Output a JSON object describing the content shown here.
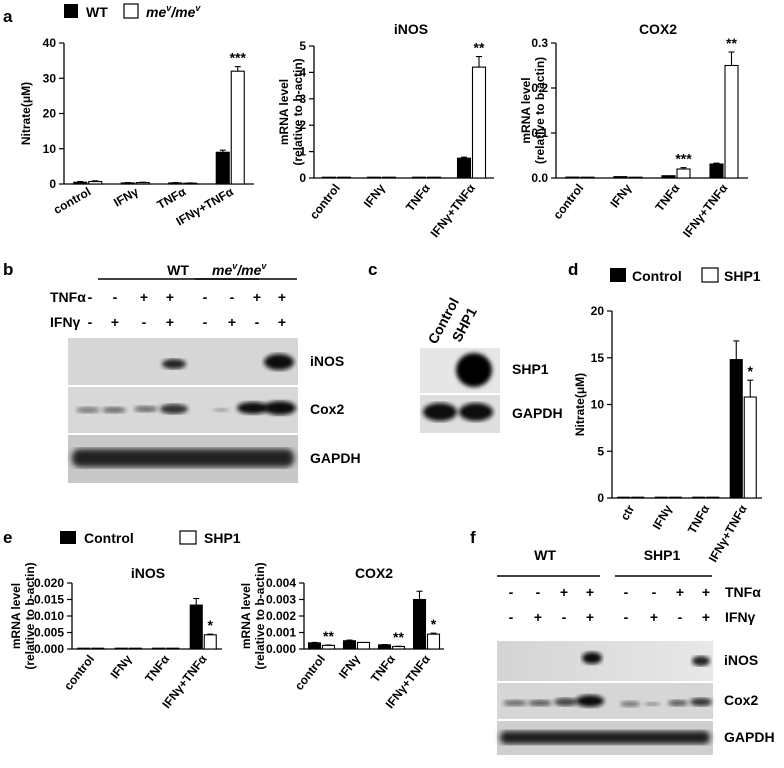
{
  "panel_letters": {
    "a": "a",
    "b": "b",
    "c": "c",
    "d": "d",
    "e": "e",
    "f": "f"
  },
  "legend_a": {
    "wt": "WT",
    "mut": "me",
    "mut_sup": "v",
    "slash": "/",
    "mut2": "me",
    "mut2_sup": "v"
  },
  "legend_d": {
    "control": "Control",
    "shp1": "SHP1"
  },
  "legend_e": {
    "control": "Control",
    "shp1": "SHP1"
  },
  "colors": {
    "filled": "#000000",
    "open": "#ffffff",
    "axis": "#000000"
  },
  "chart_data": [
    {
      "id": "a1",
      "type": "bar",
      "title": "",
      "ylabel": "Nitrate(μM)",
      "ylim": [
        0,
        40
      ],
      "yticks": [
        "0",
        "10",
        "20",
        "30",
        "40"
      ],
      "categories": [
        "control",
        "IFNγ",
        "TNFα",
        "IFNγ+TNFα"
      ],
      "series": [
        {
          "name": "WT",
          "values": [
            0.5,
            0.3,
            0.3,
            9.0
          ],
          "errors": [
            0.2,
            0.1,
            0.1,
            0.6
          ]
        },
        {
          "name": "me/me",
          "values": [
            0.7,
            0.4,
            0.2,
            32.0
          ],
          "errors": [
            0.2,
            0.1,
            0.1,
            1.3
          ]
        }
      ],
      "annotations": [
        {
          "cat": 3,
          "series": 1,
          "text": "***"
        }
      ]
    },
    {
      "id": "a2",
      "type": "bar",
      "title": "iNOS",
      "ylabel": [
        "mRNA level",
        "(relative to b-actin)"
      ],
      "ylim": [
        0,
        5
      ],
      "yticks": [
        "0",
        "1",
        "2",
        "3",
        "4",
        "5"
      ],
      "categories": [
        "control",
        "IFNγ",
        "TNFα",
        "IFNγ+TNFα"
      ],
      "series": [
        {
          "name": "WT",
          "values": [
            0.005,
            0.01,
            0.01,
            0.75
          ],
          "errors": [
            0,
            0,
            0,
            0.04
          ]
        },
        {
          "name": "me/me",
          "values": [
            0.005,
            0.02,
            0.03,
            4.2
          ],
          "errors": [
            0,
            0,
            0,
            0.4
          ]
        }
      ],
      "annotations": [
        {
          "cat": 3,
          "series": 1,
          "text": "**"
        }
      ]
    },
    {
      "id": "a3",
      "type": "bar",
      "title": "COX2",
      "ylabel": [
        "mRNA level",
        "(relative to b-actin)"
      ],
      "ylim": [
        0,
        0.3
      ],
      "yticks": [
        "0.0",
        "0.1",
        "0.2",
        "0.3"
      ],
      "categories": [
        "control",
        "IFNγ",
        "TNFα",
        "IFNγ+TNFα"
      ],
      "series": [
        {
          "name": "WT",
          "values": [
            0.002,
            0.003,
            0.005,
            0.031
          ],
          "errors": [
            0,
            0,
            0,
            0.002
          ]
        },
        {
          "name": "me/me",
          "values": [
            0.001,
            0.001,
            0.02,
            0.25
          ],
          "errors": [
            0,
            0,
            0.003,
            0.03
          ]
        }
      ],
      "annotations": [
        {
          "cat": 2,
          "series": 1,
          "text": "***"
        },
        {
          "cat": 3,
          "series": 1,
          "text": "**"
        }
      ]
    },
    {
      "id": "d",
      "type": "bar",
      "title": "",
      "ylabel": "Nitrate(μM)",
      "ylim": [
        0,
        20
      ],
      "yticks": [
        "0",
        "5",
        "10",
        "15",
        "20"
      ],
      "categories": [
        "ctr",
        "IFNγ",
        "TNFα",
        "IFNγ+TNFα"
      ],
      "series": [
        {
          "name": "Control",
          "values": [
            0,
            0,
            0,
            14.8
          ],
          "errors": [
            0,
            0,
            0,
            2.0
          ]
        },
        {
          "name": "SHP1",
          "values": [
            0,
            0,
            0,
            10.8
          ],
          "errors": [
            0,
            0,
            0,
            1.8
          ]
        }
      ],
      "annotations": [
        {
          "cat": 3,
          "series": 1,
          "text": "*"
        }
      ]
    },
    {
      "id": "e1",
      "type": "bar",
      "title": "iNOS",
      "ylabel": [
        "mRNA level",
        "(relative to b-actin)"
      ],
      "ylim": [
        0,
        0.02
      ],
      "yticks": [
        "0.000",
        "0.005",
        "0.010",
        "0.015",
        "0.020"
      ],
      "categories": [
        "control",
        "IFNγ",
        "TNFα",
        "IFNγ+TNFα"
      ],
      "series": [
        {
          "name": "Control",
          "values": [
            0,
            0,
            0.0001,
            0.0133
          ],
          "errors": [
            0,
            0,
            0,
            0.002
          ]
        },
        {
          "name": "SHP1",
          "values": [
            0,
            0,
            0.0001,
            0.0043
          ],
          "errors": [
            0,
            0,
            0,
            0.0002
          ]
        }
      ],
      "annotations": [
        {
          "cat": 3,
          "series": 1,
          "text": "*"
        }
      ]
    },
    {
      "id": "e2",
      "type": "bar",
      "title": "COX2",
      "ylabel": [
        "mRNA level",
        "(relative to b-actin)"
      ],
      "ylim": [
        0,
        0.004
      ],
      "yticks": [
        "0.000",
        "0.001",
        "0.002",
        "0.003",
        "0.004"
      ],
      "categories": [
        "control",
        "IFNγ",
        "TNFα",
        "IFNγ+TNFα"
      ],
      "series": [
        {
          "name": "Control",
          "values": [
            0.00037,
            0.0005,
            0.00025,
            0.003
          ],
          "errors": [
            3e-05,
            4e-05,
            2e-05,
            0.0005
          ]
        },
        {
          "name": "SHP1",
          "values": [
            0.00022,
            0.0004,
            0.00015,
            0.0009
          ],
          "errors": [
            2e-05,
            0,
            2e-05,
            6e-05
          ]
        }
      ],
      "annotations": [
        {
          "cat": 0,
          "series": 1,
          "text": "**"
        },
        {
          "cat": 2,
          "series": 1,
          "text": "**"
        },
        {
          "cat": 3,
          "series": 1,
          "text": "*"
        }
      ]
    }
  ],
  "blot_b": {
    "group1": "WT",
    "group2_base": "me",
    "group2_sup": "v",
    "group2_base2": "me",
    "group2_sup2": "v",
    "row_tnfa": "TNFα",
    "row_ifng": "IFNγ",
    "tnfa": [
      "-",
      "-",
      "+",
      "+",
      "-",
      "-",
      "+",
      "+"
    ],
    "ifng": [
      "-",
      "+",
      "-",
      "+",
      "-",
      "+",
      "-",
      "+"
    ],
    "bands": [
      "iNOS",
      "Cox2",
      "GAPDH"
    ]
  },
  "blot_c": {
    "lanes": [
      "Control",
      "SHP1"
    ],
    "bands": [
      "SHP1",
      "GAPDH"
    ]
  },
  "blot_f": {
    "group1": "WT",
    "group2": "SHP1",
    "row_tnfa": "TNFα",
    "row_ifng": "IFNγ",
    "tnfa": [
      "-",
      "-",
      "+",
      "+",
      "-",
      "-",
      "+",
      "+"
    ],
    "ifng": [
      "-",
      "+",
      "-",
      "+",
      "-",
      "+",
      "-",
      "+"
    ],
    "bands": [
      "iNOS",
      "Cox2",
      "GAPDH"
    ]
  }
}
